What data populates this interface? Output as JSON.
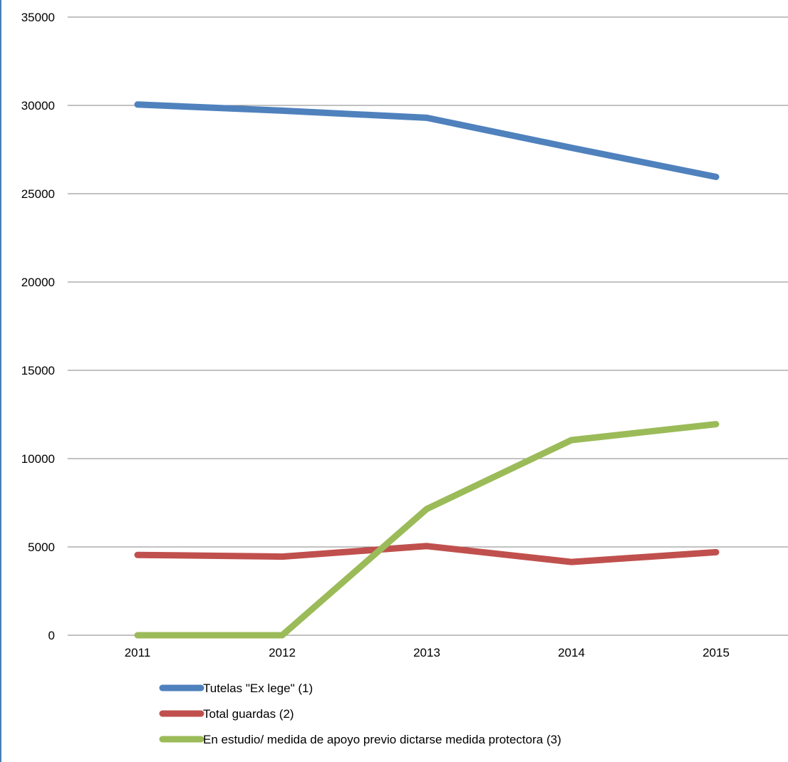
{
  "chart_data": {
    "type": "line",
    "categories": [
      "2011",
      "2012",
      "2013",
      "2014",
      "2015"
    ],
    "ylim": [
      0,
      35000
    ],
    "yticks": [
      0,
      5000,
      10000,
      15000,
      20000,
      25000,
      30000,
      35000
    ],
    "grid": true,
    "legend_position": "bottom-left",
    "series": [
      {
        "name": "Tutelas \"Ex lege\" (1)",
        "color": "#4f81bd",
        "values": [
          30050,
          29700,
          29300,
          27600,
          25950
        ]
      },
      {
        "name": "Total guardas (2)",
        "color": "#c0504d",
        "values": [
          4550,
          4450,
          5050,
          4150,
          4700
        ]
      },
      {
        "name": "En estudio/ medida de apoyo previo dictarse medida protectora (3)",
        "color": "#9bbb59",
        "values": [
          0,
          0,
          7150,
          11050,
          11950
        ]
      }
    ]
  }
}
